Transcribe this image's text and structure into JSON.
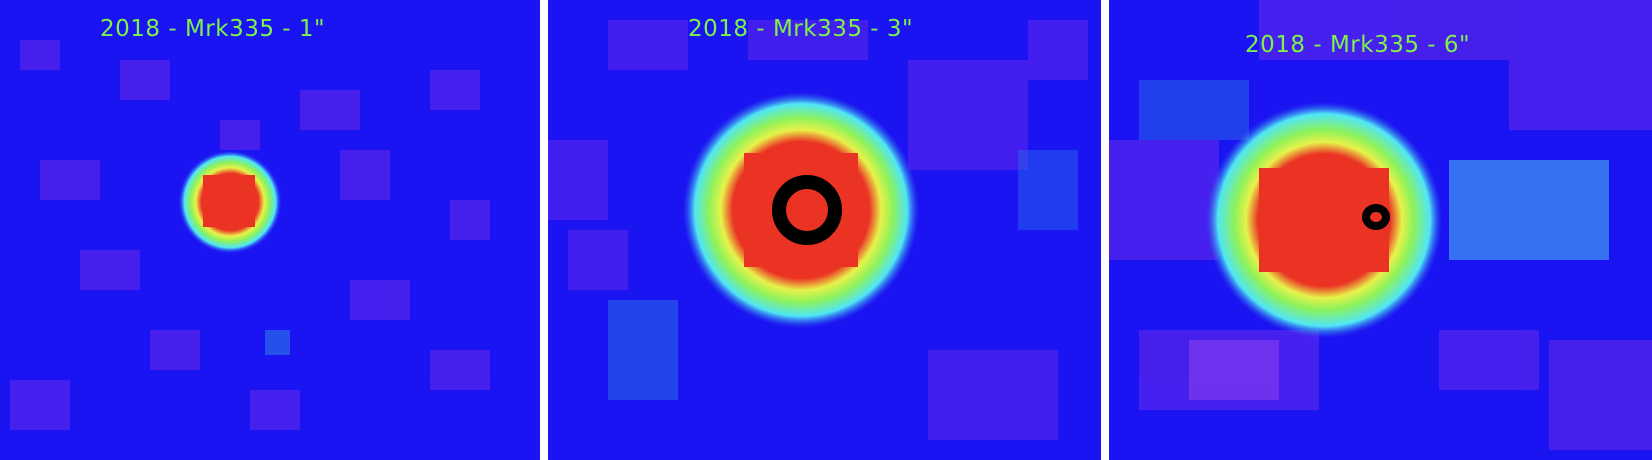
{
  "panels": [
    {
      "label": "2018 - Mrk335 - 1\"",
      "source_size": "small",
      "contour": "none"
    },
    {
      "label": "2018 - Mrk335 - 3\"",
      "source_size": "medium",
      "contour": "ring"
    },
    {
      "label": "2018 - Mrk335 - 6\"",
      "source_size": "large",
      "contour": "small-ring"
    }
  ],
  "colors": {
    "background": "#1b14f2",
    "noise_purple": "#7a2ee8",
    "cyan": "#50e6f5",
    "green": "#8ef25a",
    "yellow": "#e8f24a",
    "orange": "#f07a2a",
    "red": "#eb3324",
    "label_green": "#7df24a",
    "contour": "#000000"
  }
}
